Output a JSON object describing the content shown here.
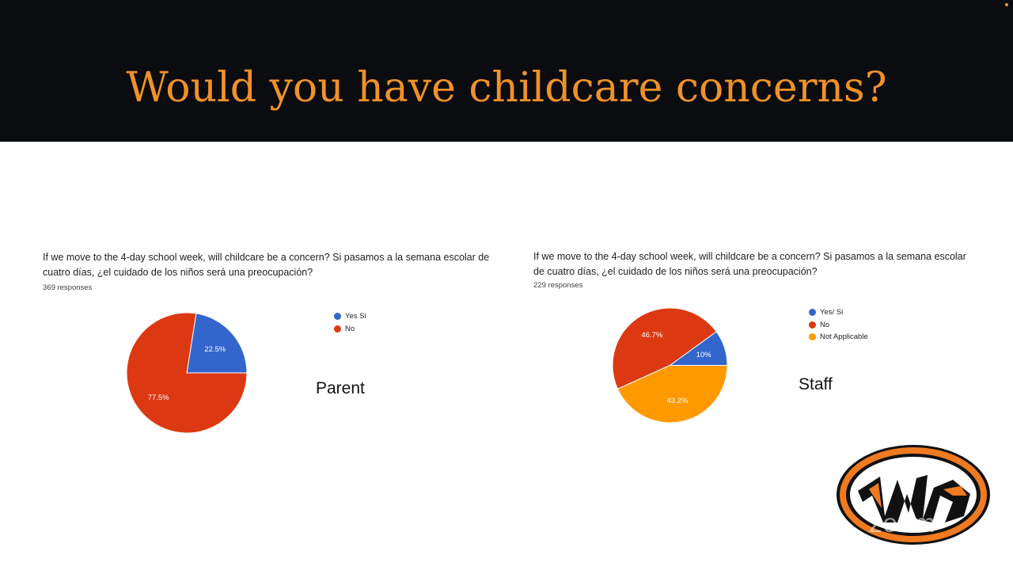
{
  "title": "Would you have childcare concerns?",
  "chart_data": [
    {
      "type": "pie",
      "question": "If we move to the 4-day school week, will childcare be a concern? Si pasamos a la semana escolar de cuatro días, ¿el cuidado de los niños será una preocupación?",
      "responses": "369 responses",
      "group": "Parent",
      "legend_position": "right",
      "slices": [
        {
          "label": "Yes Si",
          "value": 22.5,
          "value_label": "22.5%",
          "color": "#3366cc"
        },
        {
          "label": "No",
          "value": 77.5,
          "value_label": "77.5%",
          "color": "#dc3912"
        }
      ]
    },
    {
      "type": "pie",
      "question": "If we move to the 4-day school week, will childcare be a concern? Si pasamos a la semana escolar de cuatro días, ¿el cuidado de los niños será una preocupación?",
      "responses": "229 responses",
      "group": "Staff",
      "legend_position": "right",
      "slices": [
        {
          "label": "Yes/ Si",
          "value": 10,
          "value_label": "10%",
          "color": "#3366cc"
        },
        {
          "label": "No",
          "value": 46.7,
          "value_label": "46.7%",
          "color": "#dc3912"
        },
        {
          "label": "Not Applicable",
          "value": 43.2,
          "value_label": "43.2%",
          "color": "#ff9900"
        }
      ]
    }
  ],
  "logo": {
    "colors": {
      "orange": "#f07a20",
      "black": "#111111"
    }
  },
  "watermark": "zoom"
}
